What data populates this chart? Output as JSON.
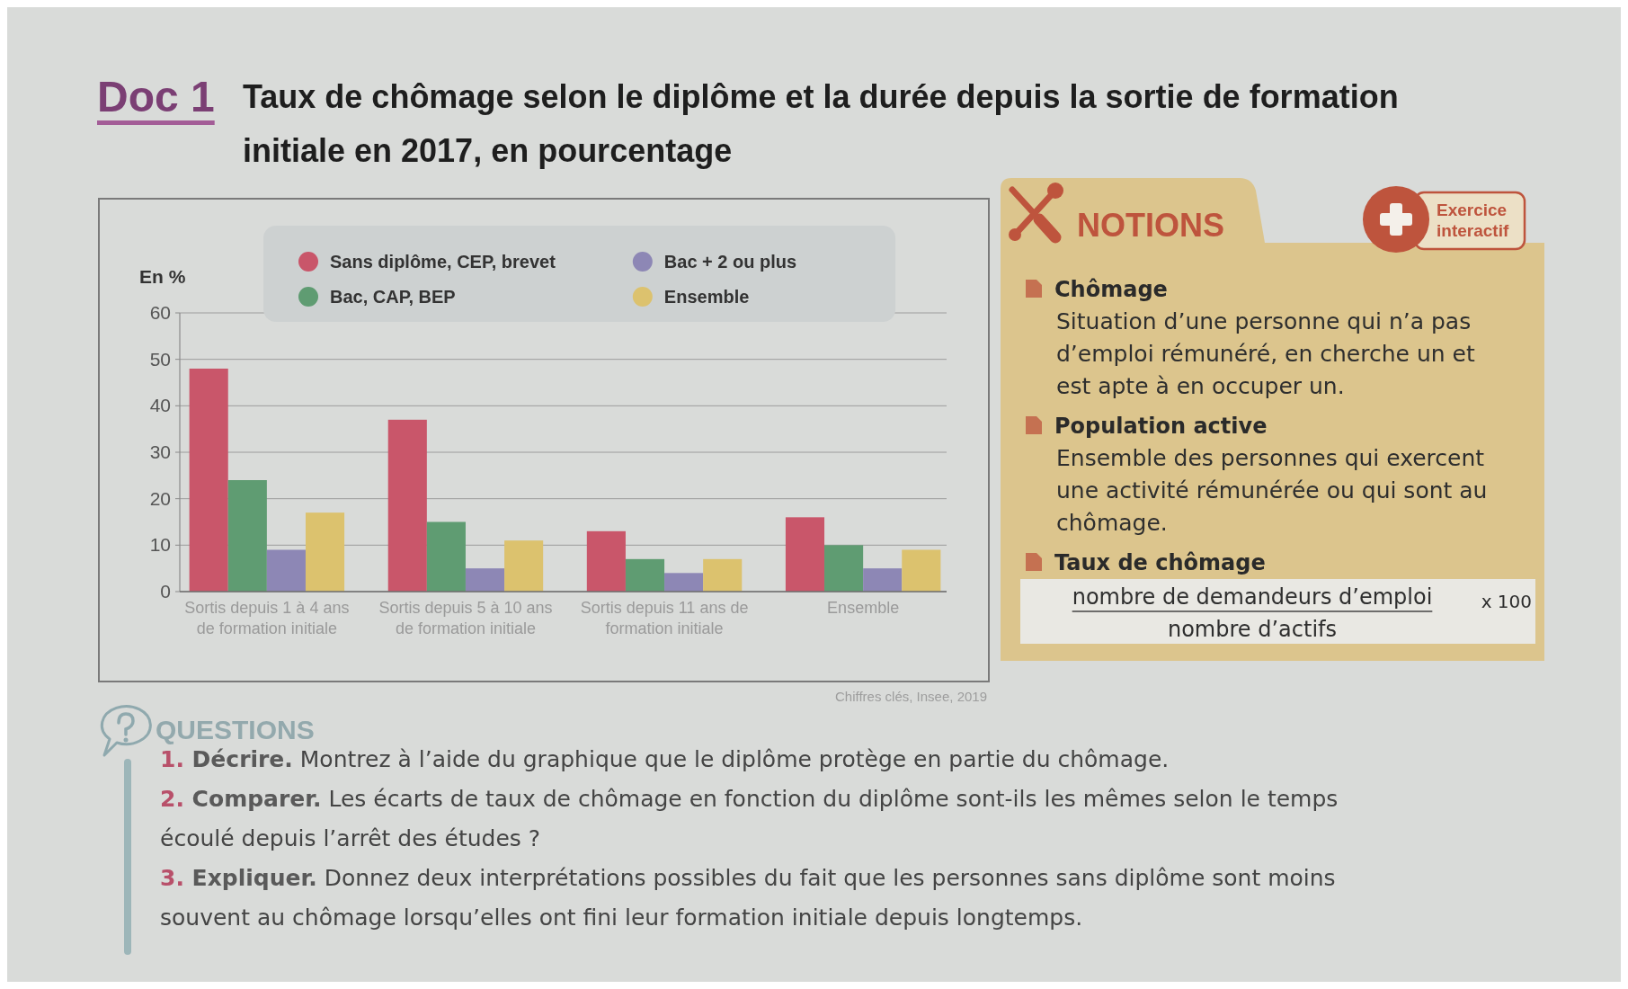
{
  "chart_data": [
    {
      "type": "bar",
      "title": "Taux de chômage selon le diplôme et la durée depuis la sortie de formation initiale en 2017, en pourcentage",
      "ylabel": "En %",
      "annotations": [
        "Doc 1",
        "Chiffres clés, Insee, 2019"
      ],
      "categories": [
        "Sortis depuis 1 à 4 ans de formation initiale",
        "Sortis depuis 5 à 10 ans de formation initiale",
        "Sortis depuis 11 ans de formation initiale",
        "Ensemble"
      ],
      "series": [
        {
          "name": "Sans diplôme, CEP, brevet",
          "color": "#c9566a",
          "values": [
            48,
            37,
            13,
            16
          ]
        },
        {
          "name": "Bac, CAP, BEP",
          "color": "#5f9c72",
          "values": [
            24,
            15,
            7,
            10
          ]
        },
        {
          "name": "Bac + 2 ou plus",
          "color": "#8d87b5",
          "values": [
            9,
            5,
            4,
            5
          ]
        },
        {
          "name": "Ensemble",
          "color": "#dcc26e",
          "values": [
            17,
            11,
            7,
            9
          ]
        }
      ],
      "ylim": [
        0,
        60
      ],
      "yticks": [
        0,
        10,
        20,
        30,
        40,
        50,
        60
      ],
      "grid": "y",
      "legend": "top"
    },
    {
      "type": "other",
      "title": "NOTIONS",
      "annotations": [
        "Exercice interactif",
        "Chômage",
        "Situation d’une personne qui n’a pas d’emploi rémunéré, en cherche un et est apte à en occuper un.",
        "Population active",
        "Ensemble des personnes qui exercent une activité rémunérée ou qui sont au chômage.",
        "Taux de chômage",
        "nombre de demandeurs d’emploi",
        "nombre d’actifs",
        "x 100"
      ]
    },
    {
      "type": "other",
      "title": "QUESTIONS",
      "annotations": [
        "1. Décrire. Montrez à l’aide du graphique que le diplôme protège en partie du chômage.",
        "2. Comparer. Les écarts de taux de chômage en fonction du diplôme sont-ils les mêmes selon le temps écoulé depuis l’arrêt des études ?",
        "3. Expliquer. Donnez deux interprétations possibles du fait que les personnes sans diplôme sont moins souvent au chômage lorsqu’elles ont fini leur formation initiale depuis longtemps."
      ]
    }
  ]
}
